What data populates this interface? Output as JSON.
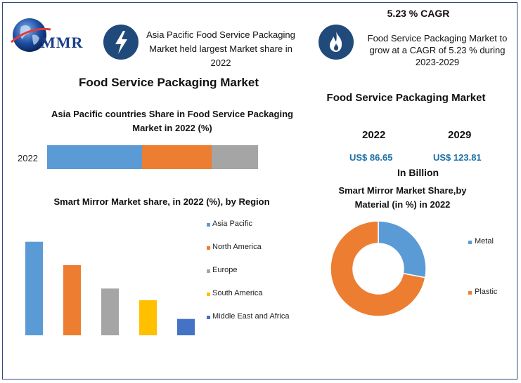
{
  "logo": {
    "text": "MMR"
  },
  "header": {
    "left_text": "Asia Pacific Food Service Packaging Market held largest Market share in 2022",
    "cagr_title": "5.23 % CAGR",
    "right_text": "Food Service Packaging Market to grow at a CAGR of 5.23 % during 2023-2029"
  },
  "main_title": "Food Service Packaging Market",
  "market_size": {
    "title": "Food Service Packaging Market",
    "year_a": "2022",
    "year_b": "2029",
    "value_a": "US$ 86.65",
    "value_b": "US$ 123.81",
    "unit": "In Billion"
  },
  "colors": {
    "blue": "#5b9bd5",
    "orange": "#ed7d31",
    "gray": "#a5a5a5",
    "yellow": "#ffc000",
    "darkblue": "#4472c4",
    "accent": "#1f4a7a"
  },
  "chart_data": [
    {
      "type": "bar",
      "orientation": "horizontal-stacked",
      "title": "Asia Pacific countries Share in Food Service Packaging Market in 2022 (%)",
      "categories": [
        "2022"
      ],
      "series": [
        {
          "values": [
            45
          ]
        },
        {
          "values": [
            33
          ]
        },
        {
          "values": [
            22
          ]
        }
      ],
      "xlim": [
        0,
        100
      ]
    },
    {
      "type": "bar",
      "title": "Smart Mirror Market share, in 2022 (%), by Region",
      "categories": [
        "Asia Pacific",
        "North America",
        "Europe",
        "South America",
        "Middle East and Africa"
      ],
      "values": [
        40,
        30,
        20,
        15,
        7
      ],
      "ylim": [
        0,
        45
      ],
      "legend": "right"
    },
    {
      "type": "pie",
      "title": "Smart Mirror Market Share,by Material (in %) in 2022",
      "labels": [
        "Metal",
        "Plastic"
      ],
      "values": [
        28,
        72
      ],
      "donut": true,
      "legend": "right"
    }
  ]
}
